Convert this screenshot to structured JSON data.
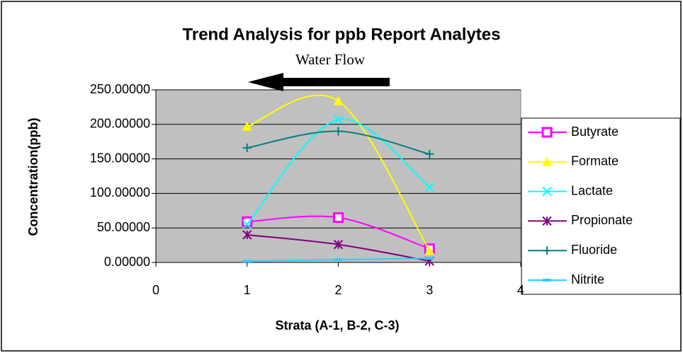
{
  "chart_data": {
    "type": "scatter",
    "title": "Trend Analysis for ppb Report Analytes",
    "annotation": "Water Flow",
    "x_label": "Strata (A-1, B-2, C-3)",
    "y_label": "Concentration(ppb)",
    "x": [
      1,
      2,
      3
    ],
    "xlim": [
      0,
      4
    ],
    "xticks": [
      0,
      1,
      2,
      3,
      4
    ],
    "ylim": [
      0,
      250
    ],
    "yticks": [
      {
        "value": 0,
        "label": "0.00000"
      },
      {
        "value": 50,
        "label": "50.00000"
      },
      {
        "value": 100,
        "label": "100.00000"
      },
      {
        "value": 150,
        "label": "150.00000"
      },
      {
        "value": 200,
        "label": "200.00000"
      },
      {
        "value": 250,
        "label": "250.00000"
      }
    ],
    "grid": true,
    "smooth": true,
    "legend": "right",
    "series": [
      {
        "name": "Butyrate",
        "color": "#ff00ff",
        "marker": "square",
        "values": [
          59,
          65,
          20
        ]
      },
      {
        "name": "Formate",
        "color": "#ffff00",
        "marker": "triangle",
        "values": [
          197,
          234,
          17
        ]
      },
      {
        "name": "Lactate",
        "color": "#00ffff",
        "marker": "x",
        "values": [
          55,
          207,
          109
        ]
      },
      {
        "name": "Propionate",
        "color": "#800080",
        "marker": "star",
        "values": [
          40,
          26,
          2
        ]
      },
      {
        "name": "Fluoride",
        "color": "#008080",
        "marker": "plus",
        "values": [
          166,
          190,
          157
        ]
      },
      {
        "name": "Nitrite",
        "color": "#33ccff",
        "marker": "dash",
        "values": [
          2,
          4,
          6
        ]
      }
    ]
  }
}
